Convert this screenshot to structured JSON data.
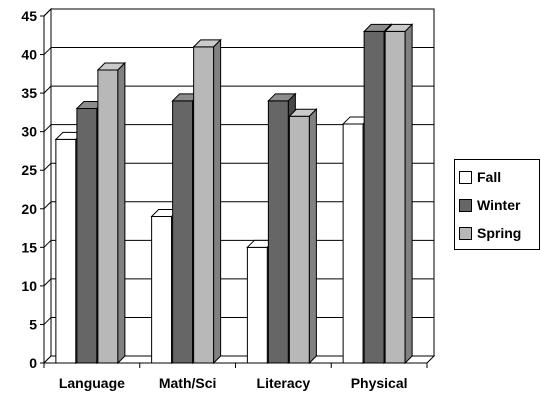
{
  "chart_data": {
    "type": "bar",
    "title": "",
    "xlabel": "",
    "ylabel": "",
    "categories": [
      "Language",
      "Math/Sci",
      "Literacy",
      "Physical"
    ],
    "series": [
      {
        "name": "Fall",
        "values": [
          29,
          19,
          15,
          31
        ],
        "color": "#ffffff"
      },
      {
        "name": "Winter",
        "values": [
          33,
          34,
          34,
          43
        ],
        "color": "#666666"
      },
      {
        "name": "Spring",
        "values": [
          38,
          41,
          32,
          43
        ],
        "color": "#b8b8b8"
      }
    ],
    "ylim": [
      0,
      45
    ],
    "yticks": [
      0,
      5,
      10,
      15,
      20,
      25,
      30,
      35,
      40,
      45
    ],
    "grid": true,
    "legend_position": "right",
    "three_d": true
  }
}
